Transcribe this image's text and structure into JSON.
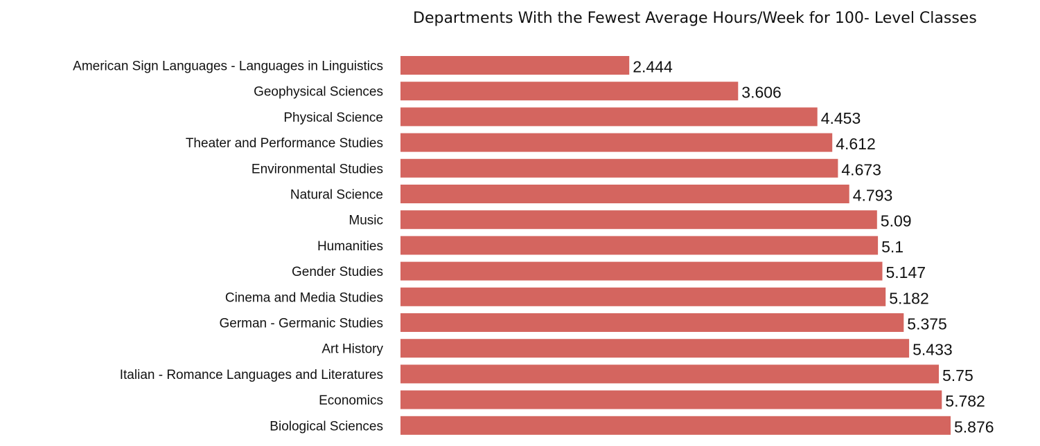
{
  "chart_data": {
    "type": "bar",
    "orientation": "horizontal",
    "title": "Departments With the Fewest Average Hours/Week for 100- Level Classes",
    "xlabel": "",
    "ylabel": "",
    "categories": [
      "American Sign Languages - Languages in Linguistics",
      "Geophysical Sciences",
      "Physical Science",
      "Theater and Performance Studies",
      "Environmental Studies",
      "Natural Science",
      "Music",
      "Humanities",
      "Gender Studies",
      "Cinema and Media Studies",
      "German - Germanic Studies",
      "Art History",
      "Italian - Romance Languages and Literatures",
      "Economics",
      "Biological Sciences"
    ],
    "values": [
      2.444,
      3.606,
      4.453,
      4.612,
      4.673,
      4.793,
      5.09,
      5.1,
      5.147,
      5.182,
      5.375,
      5.433,
      5.75,
      5.782,
      5.876
    ],
    "value_labels": [
      "2.444",
      "3.606",
      "4.453",
      "4.612",
      "4.673",
      "4.793",
      "5.09",
      "5.1",
      "5.147",
      "5.182",
      "5.375",
      "5.433",
      "5.75",
      "5.782",
      "5.876"
    ],
    "xlim": [
      0,
      5.876
    ],
    "bar_color": "#d4655f",
    "grid": false,
    "legend": "none"
  }
}
